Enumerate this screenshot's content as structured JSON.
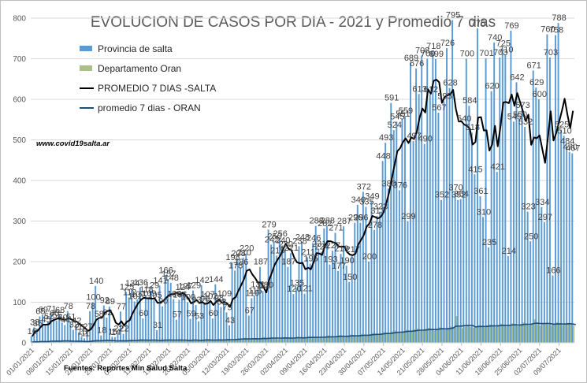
{
  "chart_data": {
    "type": "bar",
    "title": "EVOLUCION DE CASOS POR DIA - 2021 y Promedio 7 dias",
    "website": "www.covid19salta.ar",
    "source": "Fuentes: Reportes Min Salud Salta",
    "ylim": [
      0,
      800
    ],
    "yticks": [
      "0",
      "100",
      "200",
      "300",
      "400",
      "500",
      "600",
      "700",
      "800"
    ],
    "date_start": "2021-01-01",
    "xtick_labels": [
      "01/01/2021",
      "08/01/2021",
      "15/01/2021",
      "22/01/2021",
      "29/01/2021",
      "05/02/2021",
      "12/02/2021",
      "19/02/2021",
      "26/02/2021",
      "05/03/2021",
      "12/03/2021",
      "19/03/2021",
      "26/03/2021",
      "02/04/2021",
      "09/04/2021",
      "16/04/2021",
      "23/04/2021",
      "30/04/2021",
      "07/05/2021",
      "14/05/2021",
      "21/05/2021",
      "28/05/2021",
      "04/06/2021",
      "11/06/2021",
      "18/06/2021",
      "25/06/2021",
      "02/07/2021",
      "09/07/2021"
    ],
    "legend": [
      {
        "name": "Provincia de salta",
        "kind": "bar",
        "color": "#5b9bd5"
      },
      {
        "name": "Departamento Oran",
        "kind": "bar",
        "color": "#a9c08a"
      },
      {
        "name": "PROMEDIO 7 DIAS -SALTA",
        "kind": "line",
        "color": "#000000"
      },
      {
        "name": "promedio 7 dias - ORAN",
        "kind": "line",
        "color": "#1f4e79"
      }
    ],
    "series": [
      {
        "name": "Provincia de salta",
        "values": [
          16,
          38,
          35,
          65,
          69,
          45,
          52,
          71,
          60,
          55,
          68,
          50,
          44,
          78,
          51,
          32,
          42,
          26,
          15,
          11,
          27,
          78,
          100,
          140,
          58,
          18,
          92,
          62,
          89,
          15,
          14,
          22,
          77,
          22,
          125,
          112,
          134,
          102,
          107,
          136,
          60,
          118,
          109,
          129,
          105,
          31,
          141,
          90,
          166,
          157,
          148,
          108,
          57,
          106,
          124,
          127,
          100,
          59,
          129,
          93,
          53,
          142,
          96,
          107,
          102,
          60,
          144,
          98,
          88,
          109,
          75,
          43,
          198,
          178,
          208,
          186,
          210,
          220,
          67,
          110,
          116,
          131,
          187,
          128,
          130,
          279,
          242,
          250,
          215,
          256,
          240,
          230,
          187,
          221,
          120,
          135,
          238,
          248,
          121,
          211,
          195,
          246,
          288,
          231,
          224,
          282,
          288,
          193,
          227,
          271,
          177,
          219,
          287,
          190,
          150,
          217,
          296,
          340,
          296,
          372,
          335,
          200,
          349,
          278,
          313,
          323,
          448,
          493,
          380,
          591,
          524,
          545,
          376,
          551,
          559,
          299,
          689,
          497,
          676,
          613,
          708,
          490,
          700,
          612,
          718,
          699,
          567,
          352,
          595,
          726,
          628,
          795,
          370,
          352,
          354,
          540,
          700,
          584,
          518,
          415,
          775,
          361,
          310,
          701,
          235,
          620,
          740,
          421,
          703,
          725,
          710,
          214,
          769,
          545,
          642,
          550,
          573,
          532,
          323,
          250,
          671,
          629,
          600,
          334,
          297,
          760,
          703,
          166,
          758,
          788,
          525,
          510,
          484,
          470,
          467
        ]
      },
      {
        "name": "Departamento Oran",
        "values": [
          2,
          3,
          2,
          5,
          4,
          3,
          4,
          6,
          5,
          3,
          4,
          6,
          5,
          4,
          3,
          2,
          4,
          5,
          3,
          2,
          4,
          6,
          7,
          8,
          6,
          4,
          5,
          7,
          6,
          3,
          4,
          5,
          6,
          4,
          7,
          8,
          6,
          5,
          7,
          9,
          6,
          5,
          7,
          8,
          6,
          4,
          7,
          8,
          6,
          9,
          7,
          5,
          6,
          8,
          7,
          6,
          5,
          7,
          8,
          6,
          5,
          7,
          9,
          8,
          6,
          5,
          8,
          7,
          6,
          9,
          10,
          8,
          7,
          9,
          11,
          10,
          12,
          9,
          8,
          10,
          11,
          9,
          12,
          14,
          10,
          12,
          13,
          11,
          9,
          12,
          14,
          13,
          11,
          10,
          12,
          15,
          13,
          11,
          14,
          16,
          12,
          13,
          15,
          14,
          12,
          16,
          18,
          15,
          13,
          17,
          19,
          16,
          14,
          18,
          20,
          17,
          15,
          19,
          22,
          20,
          18,
          21,
          24,
          22,
          19,
          23,
          26,
          25,
          22,
          28,
          30,
          27,
          24,
          29,
          32,
          30,
          28,
          33,
          35,
          31,
          29,
          34,
          37,
          33,
          30,
          35,
          38,
          36,
          32,
          37,
          40,
          38,
          66,
          39,
          36,
          40,
          42,
          39,
          37,
          41,
          44,
          40,
          38,
          43,
          45,
          42,
          39,
          44,
          47,
          43,
          40,
          45,
          48,
          44,
          41,
          46,
          50,
          47,
          43,
          48,
          58,
          46,
          42,
          47,
          49,
          45,
          43,
          48,
          50,
          46,
          44,
          47,
          49,
          45,
          43,
          42
        ]
      }
    ]
  }
}
